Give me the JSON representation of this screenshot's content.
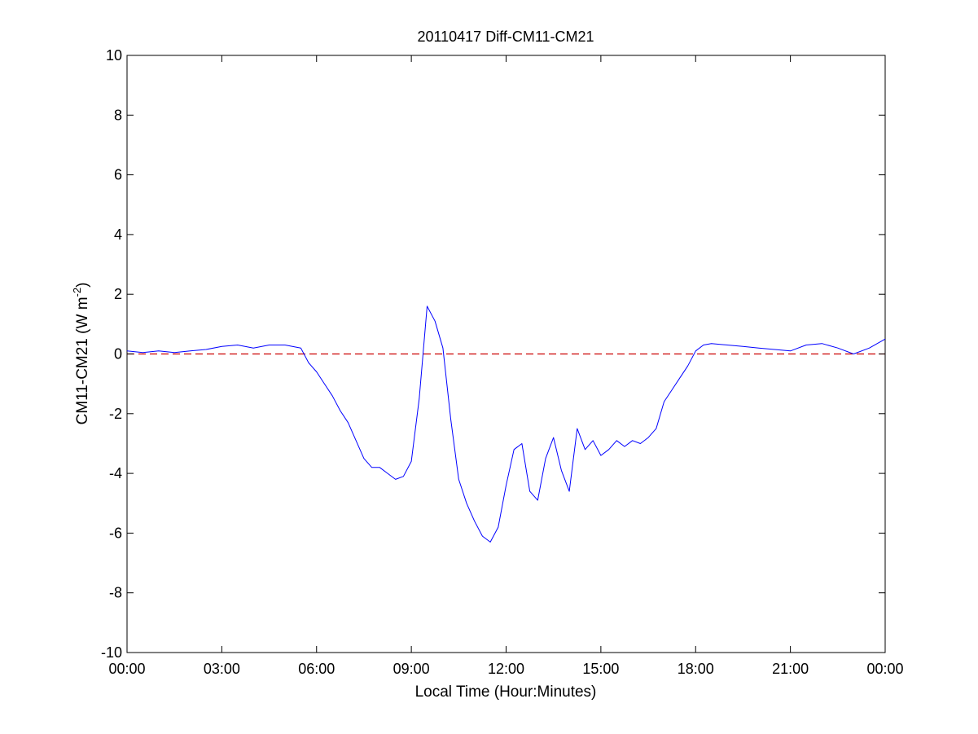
{
  "chart_data": {
    "type": "line",
    "title": "20110417 Diff-CM11-CM21",
    "xlabel": "Local Time (Hour:Minutes)",
    "ylabel": {
      "main": "CM11-CM21 (W m",
      "sup": "-2",
      "close": ")"
    },
    "xlim": [
      "00:00",
      "24:00"
    ],
    "ylim": [
      -10,
      10
    ],
    "x_ticks": [
      "00:00",
      "03:00",
      "06:00",
      "09:00",
      "12:00",
      "15:00",
      "18:00",
      "21:00",
      "00:00"
    ],
    "y_ticks": [
      "-10",
      "-8",
      "-6",
      "-4",
      "-2",
      "0",
      "2",
      "4",
      "6",
      "8",
      "10"
    ],
    "grid": false,
    "colors": {
      "series": "#0000ff",
      "reference": "#cc0000"
    },
    "reference_line": {
      "y": 0,
      "style": "dashed"
    },
    "series": [
      {
        "x": [
          "00:00",
          "00:30",
          "01:00",
          "01:30",
          "02:00",
          "02:30",
          "03:00",
          "03:30",
          "04:00",
          "04:30",
          "05:00",
          "05:30",
          "05:45",
          "06:00",
          "06:15",
          "06:30",
          "06:45",
          "07:00",
          "07:15",
          "07:30",
          "07:45",
          "08:00",
          "08:15",
          "08:30",
          "08:45",
          "09:00",
          "09:15",
          "09:30",
          "09:45",
          "10:00",
          "10:15",
          "10:30",
          "10:45",
          "11:00",
          "11:15",
          "11:30",
          "11:45",
          "12:00",
          "12:15",
          "12:30",
          "12:45",
          "13:00",
          "13:15",
          "13:30",
          "13:45",
          "14:00",
          "14:15",
          "14:30",
          "14:45",
          "15:00",
          "15:15",
          "15:30",
          "15:45",
          "16:00",
          "16:15",
          "16:30",
          "16:45",
          "17:00",
          "17:15",
          "17:30",
          "17:45",
          "18:00",
          "18:15",
          "18:30",
          "19:00",
          "19:30",
          "20:00",
          "20:30",
          "21:00",
          "21:30",
          "22:00",
          "22:30",
          "23:00",
          "23:30",
          "24:00"
        ],
        "values": [
          0.1,
          0.05,
          0.1,
          0.05,
          0.1,
          0.15,
          0.25,
          0.3,
          0.2,
          0.3,
          0.3,
          0.2,
          -0.3,
          -0.6,
          -1.0,
          -1.4,
          -1.9,
          -2.3,
          -2.9,
          -3.5,
          -3.8,
          -3.8,
          -4.0,
          -4.2,
          -4.1,
          -3.6,
          -1.5,
          1.6,
          1.1,
          0.2,
          -2.2,
          -4.2,
          -5.0,
          -5.6,
          -6.1,
          -6.3,
          -5.8,
          -4.4,
          -3.2,
          -3.0,
          -4.6,
          -4.9,
          -3.5,
          -2.8,
          -3.9,
          -4.6,
          -2.5,
          -3.2,
          -2.9,
          -3.4,
          -3.2,
          -2.9,
          -3.1,
          -2.9,
          -3.0,
          -2.8,
          -2.5,
          -1.6,
          -1.2,
          -0.8,
          -0.4,
          0.1,
          0.3,
          0.35,
          0.3,
          0.25,
          0.2,
          0.15,
          0.1,
          0.3,
          0.35,
          0.2,
          0.0,
          0.2,
          0.5
        ]
      }
    ]
  }
}
